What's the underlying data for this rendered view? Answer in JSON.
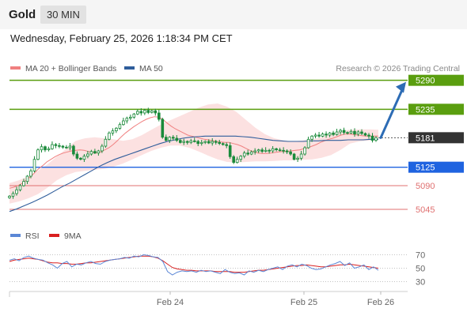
{
  "header": {
    "symbol": "Gold",
    "timeframe": "30 MIN"
  },
  "datetime": "Wednesday, February 25, 2026 1:18:34 PM CET",
  "credit": "Research © 2026 Trading Central",
  "colors": {
    "bollinger_fill": "#fbdcdc",
    "ma20": "#f08080",
    "ma50": "#2f5d9b",
    "candle": "#1a8a3a",
    "resistance": "#5a9e0f",
    "support": "#1f63e0",
    "support_minor": "#e07070",
    "current_price_box": "#333333",
    "arrow": "#2d6cb5",
    "rsi": "#5b87d6",
    "rsi_ma": "#d92020"
  },
  "chart_data": [
    {
      "type": "candlestick",
      "title": "",
      "legend": [
        {
          "name": "MA 20 + Bollinger Bands",
          "color": "#f08080"
        },
        {
          "name": "MA 50",
          "color": "#2f5d9b"
        }
      ],
      "legend_placement": "top-left",
      "x_ticks": [
        "Feb 24",
        "Feb 25",
        "Feb 26"
      ],
      "ylim": [
        5015,
        5300
      ],
      "current_price": 5181,
      "price_levels": [
        {
          "value": 5290,
          "label": "5290",
          "kind": "resistance"
        },
        {
          "value": 5235,
          "label": "5235",
          "kind": "resistance"
        },
        {
          "value": 5181,
          "label": "5181",
          "kind": "current"
        },
        {
          "value": 5125,
          "label": "5125",
          "kind": "support"
        },
        {
          "value": 5090,
          "label": "5090",
          "kind": "support_minor"
        },
        {
          "value": 5045,
          "label": "5045",
          "kind": "support_minor"
        }
      ],
      "projection": {
        "from": 5181,
        "to": 5290
      },
      "closes": [
        5070,
        5075,
        5082,
        5090,
        5098,
        5108,
        5118,
        5140,
        5158,
        5164,
        5158,
        5160,
        5168,
        5166,
        5165,
        5163,
        5162,
        5165,
        5150,
        5142,
        5140,
        5146,
        5150,
        5155,
        5152,
        5156,
        5165,
        5178,
        5190,
        5194,
        5199,
        5206,
        5213,
        5218,
        5220,
        5226,
        5231,
        5228,
        5233,
        5229,
        5232,
        5228,
        5216,
        5182,
        5176,
        5182,
        5180,
        5176,
        5172,
        5174,
        5172,
        5175,
        5174,
        5170,
        5172,
        5174,
        5171,
        5174,
        5172,
        5170,
        5168,
        5166,
        5145,
        5134,
        5140,
        5146,
        5152,
        5150,
        5154,
        5156,
        5158,
        5155,
        5157,
        5156,
        5160,
        5158,
        5157,
        5156,
        5154,
        5150,
        5140,
        5142,
        5150,
        5162,
        5178,
        5184,
        5186,
        5184,
        5188,
        5186,
        5190,
        5187,
        5192,
        5195,
        5191,
        5190,
        5193,
        5188,
        5192,
        5189,
        5186,
        5184,
        5176,
        5181
      ],
      "ma20": [
        5085,
        5087,
        5090,
        5094,
        5100,
        5107,
        5114,
        5122,
        5128,
        5135,
        5140,
        5145,
        5149,
        5152,
        5154,
        5156,
        5157,
        5158,
        5157,
        5155,
        5153,
        5152,
        5154,
        5158,
        5162,
        5168,
        5175,
        5183,
        5190,
        5196,
        5202,
        5207,
        5212,
        5216,
        5219,
        5221,
        5220,
        5216,
        5209,
        5203,
        5198,
        5194,
        5190,
        5186,
        5184,
        5182,
        5180,
        5178,
        5177,
        5175,
        5174,
        5173,
        5172,
        5172,
        5170,
        5168,
        5165,
        5161,
        5157,
        5154,
        5152,
        5151,
        5151,
        5152,
        5153,
        5154,
        5155,
        5155,
        5156,
        5157,
        5158,
        5160,
        5162,
        5165,
        5168,
        5172,
        5175,
        5178,
        5180,
        5183,
        5186,
        5188,
        5188,
        5187,
        5186,
        5185,
        5184,
        5184,
        5184,
        5184
      ],
      "ma50": [
        5041,
        5046,
        5052,
        5058,
        5065,
        5072,
        5080,
        5088,
        5095,
        5103,
        5111,
        5119,
        5127,
        5134,
        5140,
        5145,
        5150,
        5155,
        5160,
        5165,
        5170,
        5174,
        5177,
        5180,
        5182,
        5183,
        5184,
        5184,
        5184,
        5184,
        5184,
        5183,
        5182,
        5180,
        5178,
        5176,
        5175,
        5174,
        5174,
        5174,
        5175,
        5175,
        5176,
        5176,
        5176,
        5177,
        5177,
        5177,
        5178,
        5178
      ],
      "bb_upper": [
        5095,
        5100,
        5108,
        5118,
        5130,
        5145,
        5160,
        5175,
        5180,
        5182,
        5180,
        5178,
        5175,
        5178,
        5186,
        5196,
        5206,
        5214,
        5222,
        5230,
        5238,
        5244,
        5246,
        5240,
        5230,
        5215,
        5200,
        5188,
        5180,
        5176,
        5174,
        5176,
        5178,
        5182,
        5188,
        5194,
        5196,
        5197,
        5197,
        5196
      ],
      "bb_lower": [
        5056,
        5060,
        5066,
        5074,
        5086,
        5100,
        5110,
        5116,
        5118,
        5120,
        5122,
        5126,
        5132,
        5140,
        5148,
        5156,
        5162,
        5166,
        5166,
        5162,
        5155,
        5147,
        5140,
        5135,
        5134,
        5135,
        5136,
        5136,
        5137,
        5138,
        5138,
        5139,
        5140,
        5143,
        5148,
        5158,
        5170,
        5174,
        5176,
        5177
      ]
    },
    {
      "type": "line",
      "title": "",
      "legend": [
        {
          "name": "RSI",
          "color": "#5b87d6"
        },
        {
          "name": "9MA",
          "color": "#d92020"
        }
      ],
      "ylim": [
        20,
        80
      ],
      "y_ticks": [
        70,
        50,
        30
      ],
      "rsi": [
        62,
        64,
        61,
        66,
        68,
        65,
        63,
        62,
        58,
        55,
        50,
        57,
        60,
        52,
        56,
        55,
        58,
        60,
        57,
        56,
        60,
        62,
        63,
        64,
        66,
        65,
        68,
        67,
        70,
        69,
        67,
        66,
        60,
        45,
        40,
        44,
        46,
        45,
        46,
        44,
        47,
        45,
        46,
        44,
        42,
        48,
        44,
        42,
        43,
        40,
        46,
        44,
        47,
        45,
        48,
        50,
        52,
        48,
        53,
        55,
        52,
        56,
        54,
        50,
        48,
        49,
        52,
        55,
        57,
        60,
        54,
        58,
        50,
        52,
        55,
        48,
        52,
        47
      ],
      "rsi_ma": [
        60,
        62,
        63,
        64,
        65,
        64,
        63,
        61,
        59,
        58,
        58,
        57,
        57,
        56,
        56,
        57,
        58,
        58,
        59,
        60,
        61,
        62,
        63,
        64,
        65,
        66,
        67,
        68,
        68,
        68,
        67,
        65,
        61,
        56,
        51,
        49,
        48,
        47,
        47,
        46,
        46,
        46,
        46,
        45,
        45,
        45,
        45,
        44,
        44,
        44,
        45,
        46,
        47,
        47,
        48,
        49,
        50,
        51,
        52,
        53,
        54,
        54,
        55,
        54,
        53,
        52,
        52,
        53,
        54,
        55,
        55,
        56,
        55,
        54,
        53,
        52,
        51,
        50
      ]
    }
  ]
}
